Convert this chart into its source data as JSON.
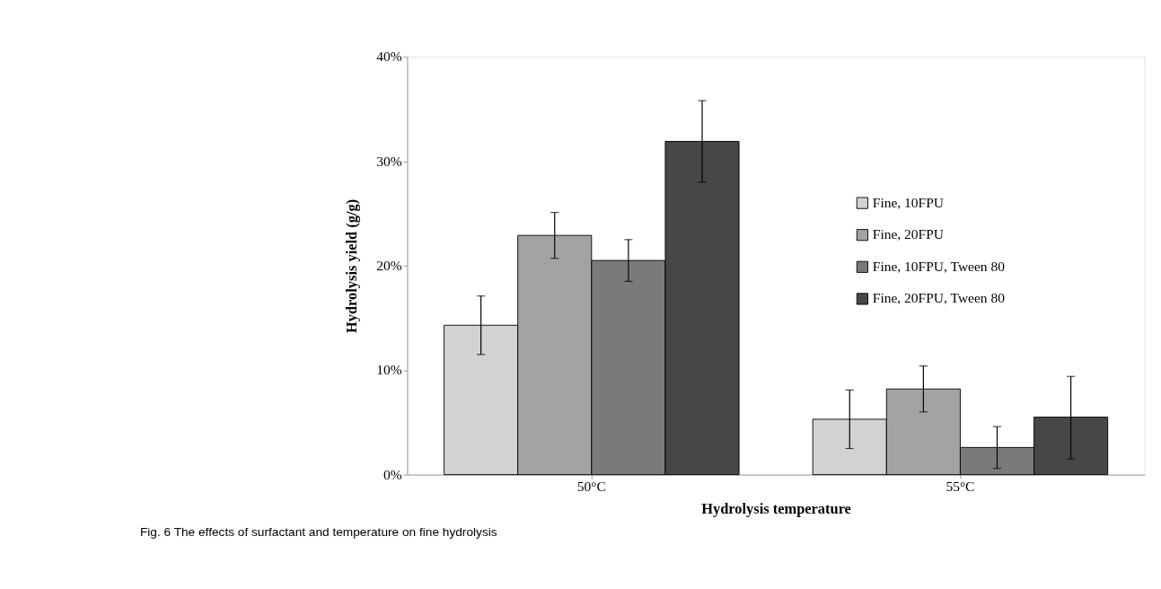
{
  "chart_data": {
    "type": "bar",
    "xlabel": "Hydrolysis temperature",
    "ylabel": "Hydrolysis yield (g/g)",
    "categories": [
      "50°C",
      "55°C"
    ],
    "series": [
      {
        "name": "Fine, 10FPU",
        "color": "#d0d3d2",
        "values": [
          14.3,
          5.3
        ],
        "errors": [
          [
            11.5,
            17.1
          ],
          [
            2.5,
            8.1
          ]
        ]
      },
      {
        "name": "Fine, 20FPU",
        "color": "#a3a3a3",
        "values": [
          22.9,
          8.2
        ],
        "errors": [
          [
            20.7,
            25.1
          ],
          [
            6.0,
            10.4
          ]
        ]
      },
      {
        "name": "Fine, 10FPU, Tween 80",
        "color": "#7a7a7a",
        "values": [
          20.5,
          2.6
        ],
        "errors": [
          [
            18.5,
            22.5
          ],
          [
            0.6,
            4.6
          ]
        ]
      },
      {
        "name": "Fine, 20FPU, Tween 80",
        "color": "#474747",
        "values": [
          31.9,
          5.5
        ],
        "errors": [
          [
            28.0,
            35.8
          ],
          [
            1.5,
            9.4
          ]
        ]
      }
    ],
    "ylim": [
      0,
      40
    ],
    "yticks": [
      {
        "value": 0,
        "label": "0%"
      },
      {
        "value": 10,
        "label": "10%"
      },
      {
        "value": 20,
        "label": "20%"
      },
      {
        "value": 30,
        "label": "30%"
      },
      {
        "value": 40,
        "label": "40%"
      }
    ],
    "grid": false,
    "legend": "top right",
    "annotations": [
      "Fig. 6  The effects of surfactant and temperature on fine hydrolysis"
    ]
  }
}
